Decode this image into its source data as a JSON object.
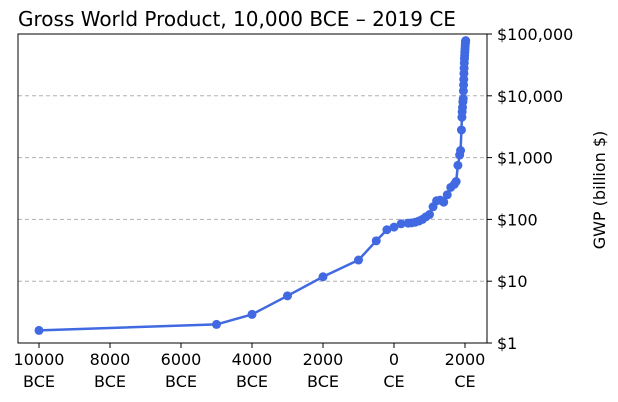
{
  "chart_data": {
    "type": "line",
    "title": "Gross World Product, 10,000 BCE – 2019 CE",
    "xlabel": "",
    "ylabel": "GWP (billion $)",
    "yscale": "log",
    "ylim": [
      1,
      100000
    ],
    "xlim": [
      -10000,
      2019
    ],
    "grid": "horizontal-dashed",
    "series_color": "#4169e1",
    "x_ticks": [
      {
        "value": -10000,
        "line1": "10000",
        "line2": "BCE"
      },
      {
        "value": -8000,
        "line1": "8000",
        "line2": "BCE"
      },
      {
        "value": -6000,
        "line1": "6000",
        "line2": "BCE"
      },
      {
        "value": -4000,
        "line1": "4000",
        "line2": "BCE"
      },
      {
        "value": -2000,
        "line1": "2000",
        "line2": "BCE"
      },
      {
        "value": 0,
        "line1": "0",
        "line2": "CE"
      },
      {
        "value": 2000,
        "line1": "2000",
        "line2": "CE"
      }
    ],
    "y_ticks": [
      {
        "value": 1,
        "label": "$1"
      },
      {
        "value": 10,
        "label": "$10"
      },
      {
        "value": 100,
        "label": "$100"
      },
      {
        "value": 1000,
        "label": "$1,000"
      },
      {
        "value": 10000,
        "label": "$10,000"
      },
      {
        "value": 100000,
        "label": "$100,000"
      }
    ],
    "series": [
      {
        "name": "GWP",
        "x": [
          -10000,
          -5000,
          -4000,
          -3000,
          -2000,
          -1000,
          -500,
          -200,
          0,
          200,
          400,
          500,
          600,
          700,
          800,
          900,
          1000,
          1100,
          1200,
          1300,
          1400,
          1500,
          1600,
          1700,
          1750,
          1800,
          1850,
          1875,
          1900,
          1913,
          1920,
          1930,
          1940,
          1950,
          1955,
          1960,
          1965,
          1970,
          1975,
          1980,
          1985,
          1990,
          1995,
          2000,
          2005,
          2010,
          2015,
          2019
        ],
        "values": [
          1.6,
          2.0,
          2.9,
          5.8,
          11.8,
          22,
          45,
          68,
          75,
          85,
          87,
          88,
          90,
          94,
          100,
          110,
          120,
          160,
          200,
          205,
          190,
          250,
          330,
          370,
          410,
          750,
          1100,
          1300,
          2800,
          4500,
          5500,
          6500,
          8000,
          9000,
          12000,
          15000,
          18500,
          23000,
          28000,
          34000,
          40000,
          45000,
          51000,
          57000,
          64000,
          70000,
          75000,
          78000
        ]
      }
    ]
  }
}
